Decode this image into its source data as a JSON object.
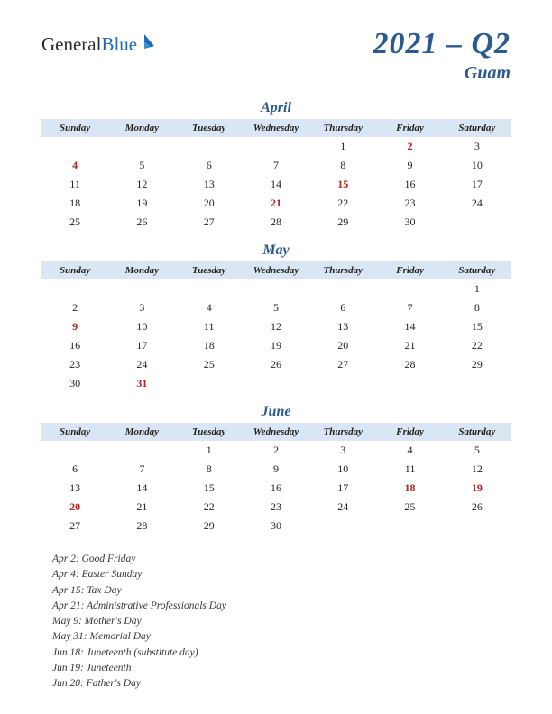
{
  "logo": {
    "part1": "General",
    "part2": "Blue"
  },
  "header": {
    "title": "2021 – Q2",
    "subtitle": "Guam"
  },
  "colors": {
    "accent": "#2b5a8f",
    "header_bg": "#dbe6f4",
    "holiday": "#b22222",
    "text": "#222222",
    "background": "#ffffff"
  },
  "day_headers": [
    "Sunday",
    "Monday",
    "Tuesday",
    "Wednesday",
    "Thursday",
    "Friday",
    "Saturday"
  ],
  "months": [
    {
      "name": "April",
      "weeks": [
        [
          null,
          null,
          null,
          null,
          {
            "d": 1
          },
          {
            "d": 2,
            "h": true
          },
          {
            "d": 3
          }
        ],
        [
          {
            "d": 4,
            "h": true
          },
          {
            "d": 5
          },
          {
            "d": 6
          },
          {
            "d": 7
          },
          {
            "d": 8
          },
          {
            "d": 9
          },
          {
            "d": 10
          }
        ],
        [
          {
            "d": 11
          },
          {
            "d": 12
          },
          {
            "d": 13
          },
          {
            "d": 14
          },
          {
            "d": 15,
            "h": true
          },
          {
            "d": 16
          },
          {
            "d": 17
          }
        ],
        [
          {
            "d": 18
          },
          {
            "d": 19
          },
          {
            "d": 20
          },
          {
            "d": 21,
            "h": true
          },
          {
            "d": 22
          },
          {
            "d": 23
          },
          {
            "d": 24
          }
        ],
        [
          {
            "d": 25
          },
          {
            "d": 26
          },
          {
            "d": 27
          },
          {
            "d": 28
          },
          {
            "d": 29
          },
          {
            "d": 30
          },
          null
        ]
      ]
    },
    {
      "name": "May",
      "weeks": [
        [
          null,
          null,
          null,
          null,
          null,
          null,
          {
            "d": 1
          }
        ],
        [
          {
            "d": 2
          },
          {
            "d": 3
          },
          {
            "d": 4
          },
          {
            "d": 5
          },
          {
            "d": 6
          },
          {
            "d": 7
          },
          {
            "d": 8
          }
        ],
        [
          {
            "d": 9,
            "h": true
          },
          {
            "d": 10
          },
          {
            "d": 11
          },
          {
            "d": 12
          },
          {
            "d": 13
          },
          {
            "d": 14
          },
          {
            "d": 15
          }
        ],
        [
          {
            "d": 16
          },
          {
            "d": 17
          },
          {
            "d": 18
          },
          {
            "d": 19
          },
          {
            "d": 20
          },
          {
            "d": 21
          },
          {
            "d": 22
          }
        ],
        [
          {
            "d": 23
          },
          {
            "d": 24
          },
          {
            "d": 25
          },
          {
            "d": 26
          },
          {
            "d": 27
          },
          {
            "d": 28
          },
          {
            "d": 29
          }
        ],
        [
          {
            "d": 30
          },
          {
            "d": 31,
            "h": true
          },
          null,
          null,
          null,
          null,
          null
        ]
      ]
    },
    {
      "name": "June",
      "weeks": [
        [
          null,
          null,
          {
            "d": 1
          },
          {
            "d": 2
          },
          {
            "d": 3
          },
          {
            "d": 4
          },
          {
            "d": 5
          }
        ],
        [
          {
            "d": 6
          },
          {
            "d": 7
          },
          {
            "d": 8
          },
          {
            "d": 9
          },
          {
            "d": 10
          },
          {
            "d": 11
          },
          {
            "d": 12
          }
        ],
        [
          {
            "d": 13
          },
          {
            "d": 14
          },
          {
            "d": 15
          },
          {
            "d": 16
          },
          {
            "d": 17
          },
          {
            "d": 18,
            "h": true
          },
          {
            "d": 19,
            "h": true
          }
        ],
        [
          {
            "d": 20,
            "h": true
          },
          {
            "d": 21
          },
          {
            "d": 22
          },
          {
            "d": 23
          },
          {
            "d": 24
          },
          {
            "d": 25
          },
          {
            "d": 26
          }
        ],
        [
          {
            "d": 27
          },
          {
            "d": 28
          },
          {
            "d": 29
          },
          {
            "d": 30
          },
          null,
          null,
          null
        ]
      ]
    }
  ],
  "notes": [
    "Apr 2: Good Friday",
    "Apr 4: Easter Sunday",
    "Apr 15: Tax Day",
    "Apr 21: Administrative Professionals Day",
    "May 9: Mother's Day",
    "May 31: Memorial Day",
    "Jun 18: Juneteenth (substitute day)",
    "Jun 19: Juneteenth",
    "Jun 20: Father's Day"
  ]
}
